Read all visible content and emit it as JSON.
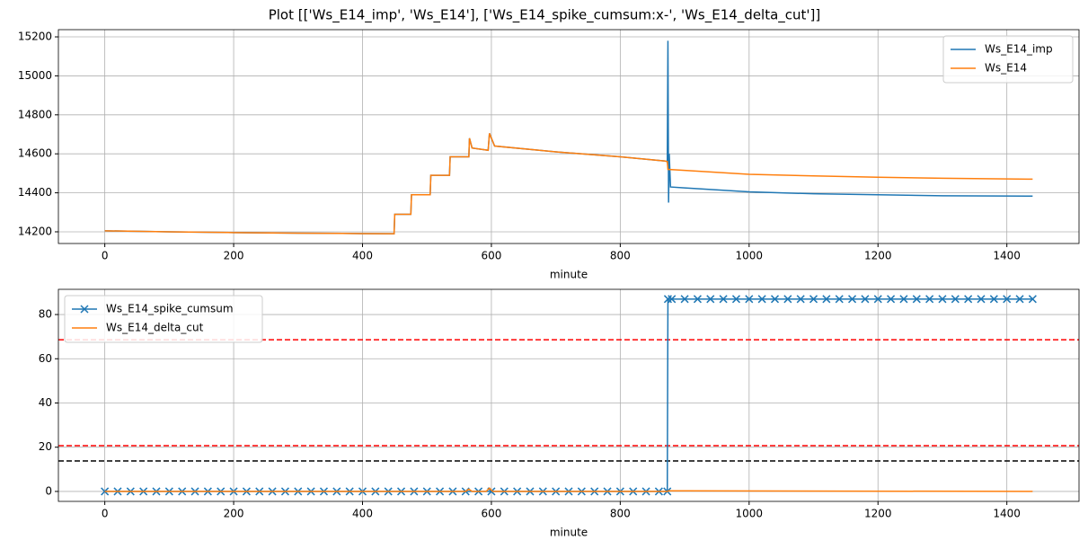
{
  "title": "Plot [['Ws_E14_imp', 'Ws_E14'], ['Ws_E14_spike_cumsum:x-', 'Ws_E14_delta_cut']]",
  "chart_data": [
    {
      "type": "line",
      "xlabel": "minute",
      "grid": true,
      "legend": "upper right",
      "xlim": [
        -72,
        1512
      ],
      "xticks": [
        0,
        200,
        400,
        600,
        800,
        1000,
        1200,
        1400
      ],
      "ylim": [
        14140,
        15237
      ],
      "yticks": [
        14200,
        14400,
        14600,
        14800,
        15000,
        15200
      ],
      "series": [
        {
          "name": "Ws_E14_imp",
          "color": "#1f77b4",
          "x": [
            0,
            100,
            200,
            300,
            400,
            449,
            450,
            475,
            476,
            505,
            506,
            535,
            536,
            565,
            566,
            570,
            595,
            597,
            605,
            700,
            800,
            870,
            873,
            874,
            875,
            876,
            878,
            900,
            1000,
            1100,
            1200,
            1300,
            1440
          ],
          "values": [
            14205,
            14200,
            14196,
            14193,
            14191,
            14190,
            14290,
            14290,
            14390,
            14390,
            14490,
            14490,
            14585,
            14585,
            14680,
            14630,
            14618,
            14705,
            14640,
            14610,
            14585,
            14563,
            14560,
            15180,
            14350,
            14600,
            14430,
            14425,
            14405,
            14395,
            14390,
            14385,
            14383
          ]
        },
        {
          "name": "Ws_E14",
          "color": "#ff7f0e",
          "x": [
            0,
            100,
            200,
            300,
            400,
            449,
            450,
            475,
            476,
            505,
            506,
            535,
            536,
            565,
            566,
            570,
            595,
            597,
            605,
            700,
            800,
            870,
            873,
            874,
            900,
            1000,
            1100,
            1200,
            1300,
            1440
          ],
          "values": [
            14205,
            14200,
            14196,
            14193,
            14191,
            14190,
            14290,
            14290,
            14390,
            14390,
            14490,
            14490,
            14585,
            14585,
            14680,
            14630,
            14618,
            14705,
            14640,
            14610,
            14585,
            14563,
            14560,
            14520,
            14515,
            14495,
            14487,
            14480,
            14475,
            14470
          ]
        }
      ]
    },
    {
      "type": "line",
      "xlabel": "minute",
      "grid": true,
      "legend": "upper left",
      "xlim": [
        -72,
        1512
      ],
      "xticks": [
        0,
        200,
        400,
        600,
        800,
        1000,
        1200,
        1400
      ],
      "ylim": [
        -4.5,
        91.4
      ],
      "yticks": [
        0,
        20,
        40,
        60,
        80
      ],
      "hlines": [
        {
          "value": 68.6,
          "color": "#ff0000"
        },
        {
          "value": 20.7,
          "color": "#ff0000"
        },
        {
          "value": 13.8,
          "color": "#000000"
        }
      ],
      "series": [
        {
          "name": "Ws_E14_spike_cumsum",
          "color": "#1f77b4",
          "marker": "x",
          "x": [
            0,
            20,
            40,
            60,
            80,
            100,
            120,
            140,
            160,
            180,
            200,
            220,
            240,
            260,
            280,
            300,
            320,
            340,
            360,
            380,
            400,
            420,
            440,
            460,
            480,
            500,
            520,
            540,
            560,
            580,
            600,
            620,
            640,
            660,
            680,
            700,
            720,
            740,
            760,
            780,
            800,
            820,
            840,
            860,
            873,
            874,
            880,
            900,
            920,
            940,
            960,
            980,
            1000,
            1020,
            1040,
            1060,
            1080,
            1100,
            1120,
            1140,
            1160,
            1180,
            1200,
            1220,
            1240,
            1260,
            1280,
            1300,
            1320,
            1340,
            1360,
            1380,
            1400,
            1420,
            1440
          ],
          "values": [
            0,
            0,
            0,
            0,
            0,
            0,
            0,
            0,
            0,
            0,
            0,
            0,
            0,
            0,
            0,
            0,
            0,
            0,
            0,
            0,
            0,
            0,
            0,
            0,
            0,
            0,
            0,
            0,
            0,
            0,
            0,
            0,
            0,
            0,
            0,
            0,
            0,
            0,
            0,
            0,
            0,
            0,
            0,
            0,
            0,
            87,
            87,
            87,
            87,
            87,
            87,
            87,
            87,
            87,
            87,
            87,
            87,
            87,
            87,
            87,
            87,
            87,
            87,
            87,
            87,
            87,
            87,
            87,
            87,
            87,
            87,
            87,
            87,
            87,
            87
          ]
        },
        {
          "name": "Ws_E14_delta_cut",
          "color": "#ff7f0e",
          "x": [
            0,
            560,
            565,
            570,
            592,
            597,
            602,
            873,
            875,
            1440
          ],
          "values": [
            0,
            0,
            1,
            0,
            0,
            1.5,
            0,
            0,
            0.3,
            0
          ]
        }
      ]
    }
  ]
}
